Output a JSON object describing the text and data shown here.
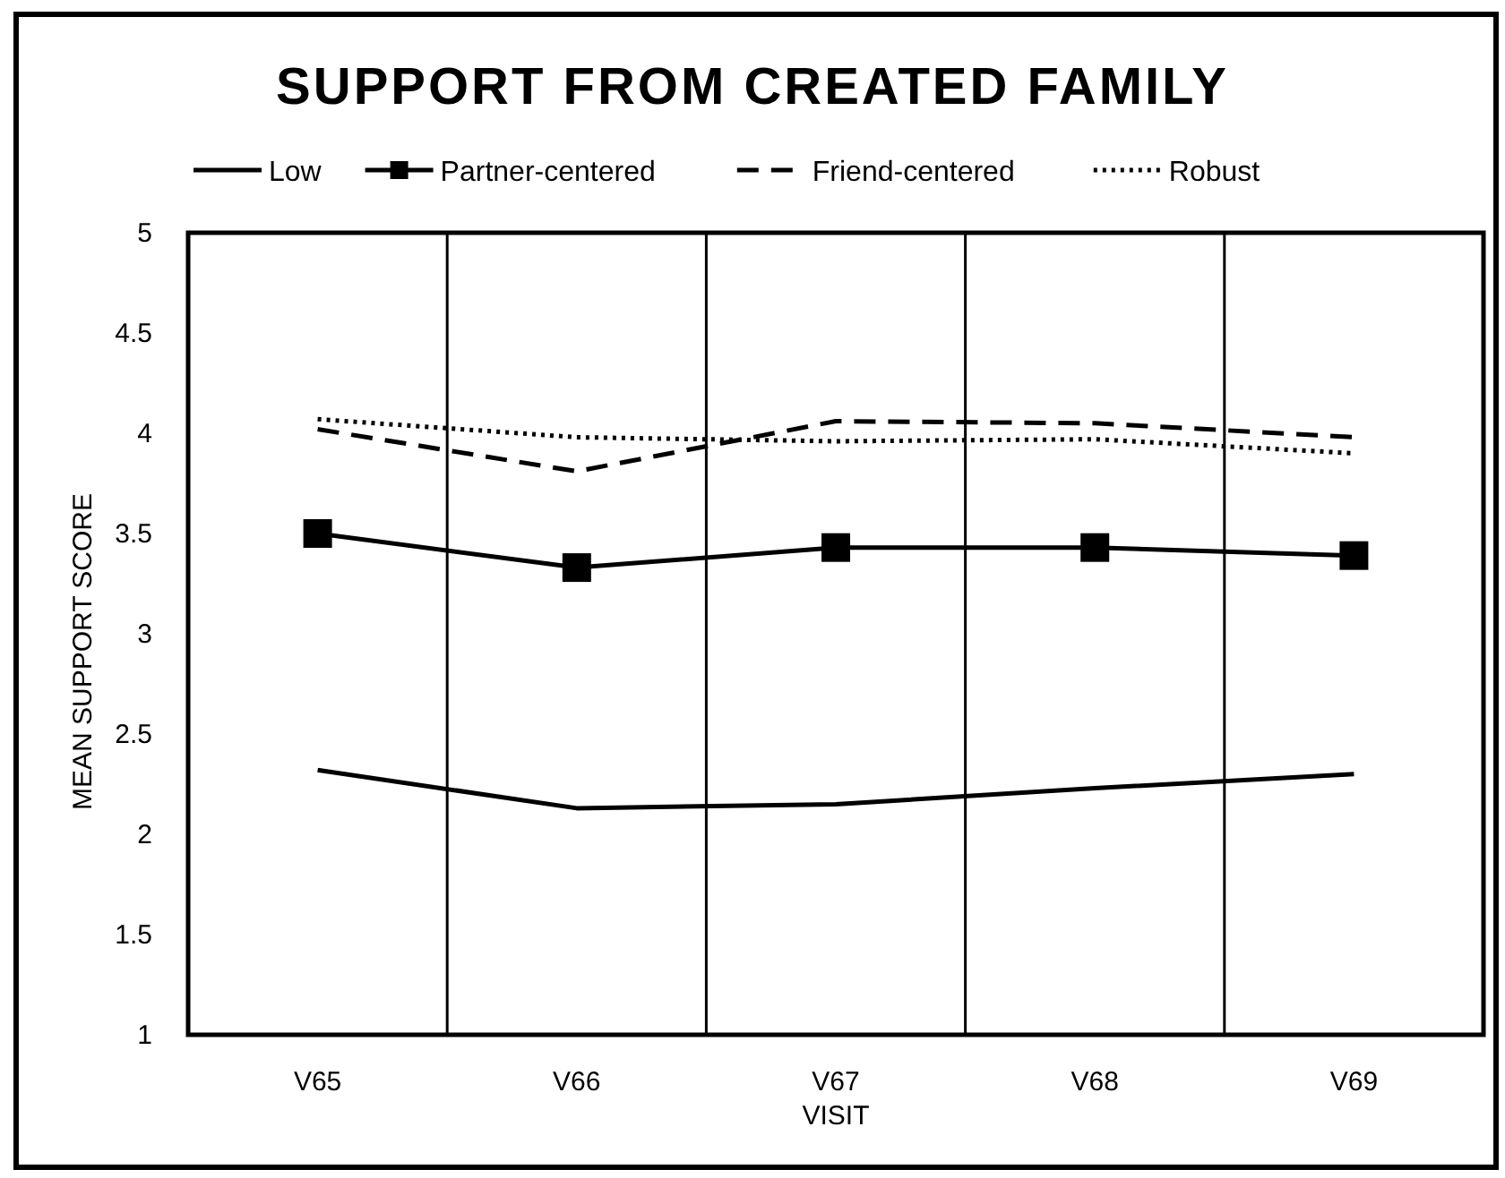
{
  "chart_data": {
    "type": "line",
    "title": "SUPPORT FROM CREATED FAMILY",
    "xlabel": "VISIT",
    "ylabel": "MEAN SUPPORT SCORE",
    "categories": [
      "V65",
      "V66",
      "V67",
      "V68",
      "V69"
    ],
    "series": [
      {
        "name": "Low",
        "color": "#000000",
        "line_style": "solid",
        "marker": "none",
        "values": [
          2.32,
          2.13,
          2.15,
          2.23,
          2.3
        ]
      },
      {
        "name": "Partner-centered",
        "color": "#000000",
        "line_style": "solid",
        "marker": "square",
        "values": [
          3.5,
          3.33,
          3.43,
          3.43,
          3.39
        ]
      },
      {
        "name": "Friend-centered",
        "color": "#000000",
        "line_style": "dashed",
        "marker": "none",
        "values": [
          4.02,
          3.81,
          4.06,
          4.05,
          3.98
        ]
      },
      {
        "name": "Robust",
        "color": "#000000",
        "line_style": "dotted",
        "marker": "none",
        "values": [
          4.07,
          3.98,
          3.96,
          3.97,
          3.9
        ]
      }
    ],
    "ylim": [
      1,
      5
    ],
    "yticks": [
      1,
      1.5,
      2,
      2.5,
      3,
      3.5,
      4,
      4.5,
      5
    ],
    "grid": "x",
    "legend": "top"
  }
}
